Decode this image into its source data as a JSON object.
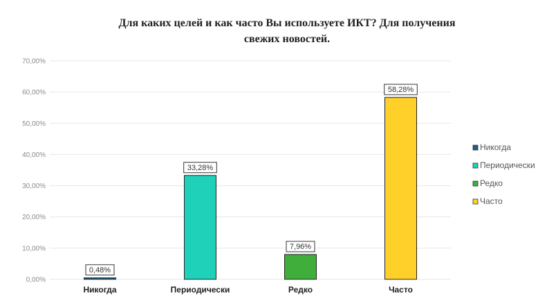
{
  "chart_data": {
    "type": "bar",
    "title_lines": [
      "Для каких целей и как часто Вы используете ИКТ? Для получения",
      "свежих новостей."
    ],
    "categories": [
      "Никогда",
      "Периодически",
      "Редко",
      "Часто"
    ],
    "values": [
      0.48,
      33.28,
      7.96,
      58.28
    ],
    "data_labels": [
      "0,48%",
      "33,28%",
      "7,96%",
      "58,28%"
    ],
    "colors": [
      "#1f5e8c",
      "#1fd1b8",
      "#3fae3a",
      "#ffcf2a"
    ],
    "ylim": [
      0,
      70
    ],
    "yticks": [
      0,
      10,
      20,
      30,
      40,
      50,
      60,
      70
    ],
    "ytick_labels": [
      "0,00%",
      "10,00%",
      "20,00%",
      "30,00%",
      "40,00%",
      "50,00%",
      "60,00%",
      "70,00%"
    ],
    "grid": true,
    "legend": {
      "position": "right",
      "entries": [
        "Никогда",
        "Периодически",
        "Редко",
        "Часто"
      ]
    }
  }
}
